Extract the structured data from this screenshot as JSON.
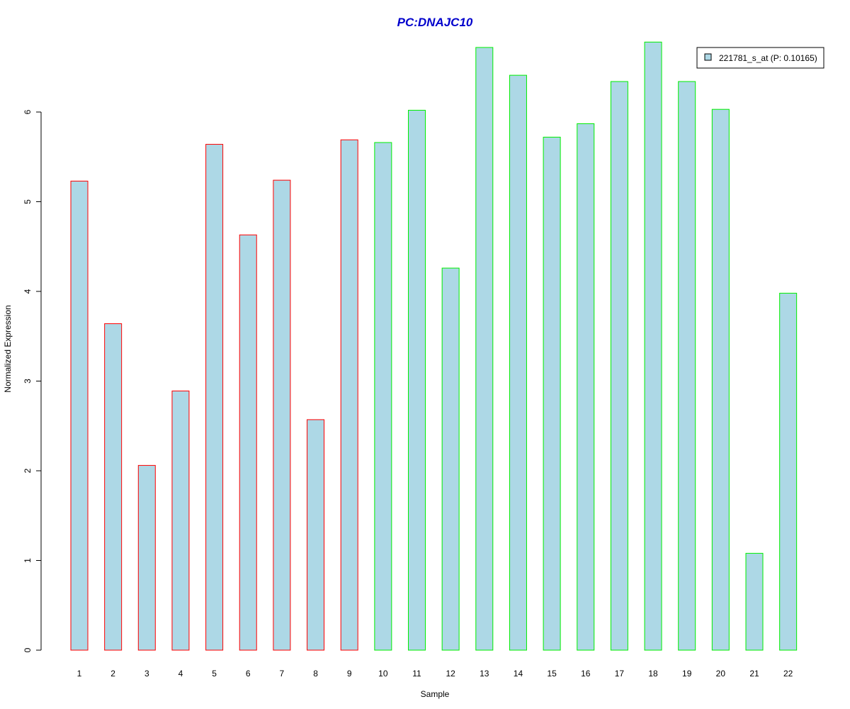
{
  "chart_data": {
    "type": "bar",
    "title": "PC:DNAJC10",
    "xlabel": "Sample",
    "ylabel": "Normalized Expression",
    "categories": [
      "1",
      "2",
      "3",
      "4",
      "5",
      "6",
      "7",
      "8",
      "9",
      "10",
      "11",
      "12",
      "13",
      "14",
      "15",
      "16",
      "17",
      "18",
      "19",
      "20",
      "21",
      "22"
    ],
    "series": [
      {
        "name": "221781_s_at (P: 0.10165)",
        "values": [
          5.23,
          3.64,
          2.06,
          2.89,
          5.64,
          4.63,
          5.24,
          2.57,
          5.69,
          5.66,
          6.02,
          4.26,
          6.72,
          6.41,
          5.72,
          5.87,
          6.34,
          6.78,
          6.34,
          6.03,
          1.08,
          3.98
        ]
      }
    ],
    "yticks": [
      0,
      1,
      2,
      3,
      4,
      5,
      6
    ],
    "ylim": [
      0,
      6.8
    ],
    "grid": false,
    "legend_position": "top-right",
    "colors": {
      "bar_fill": "#add8e6",
      "group_1_border": "#ff0000",
      "group_2_border": "#00ee00",
      "title": "#0000cc"
    },
    "border_groups": [
      "red",
      "red",
      "red",
      "red",
      "red",
      "red",
      "red",
      "red",
      "red",
      "green",
      "green",
      "green",
      "green",
      "green",
      "green",
      "green",
      "green",
      "green",
      "green",
      "green",
      "green",
      "green"
    ]
  }
}
